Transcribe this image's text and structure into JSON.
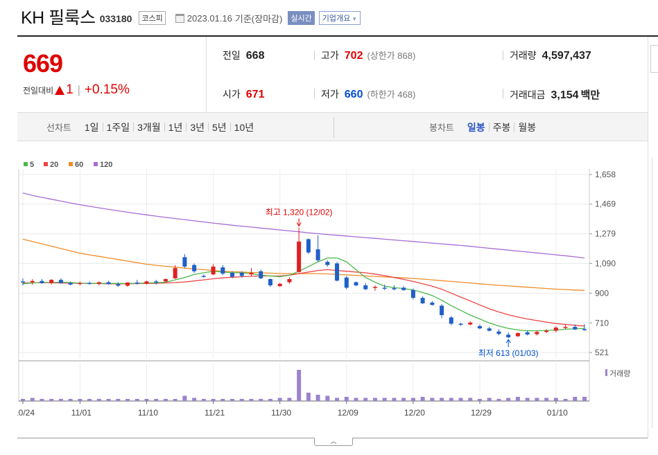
{
  "header": {
    "name": "KH 필룩스",
    "code": "033180",
    "market": "코스피",
    "date": "2023.01.16",
    "basis": "기준(장마감)",
    "realtime_label": "실시간",
    "company_label": "기업개요"
  },
  "summary": {
    "price": "669",
    "change_label": "전일대비",
    "change_value": "1",
    "change_pct": "+0.15%",
    "prev_label": "전일",
    "prev_value": "668",
    "open_label": "시가",
    "open_value": "671",
    "high_label": "고가",
    "high_value": "702",
    "upper_limit": "(상한가 868)",
    "low_label": "저가",
    "low_value": "660",
    "lower_limit": "(하한가 468)",
    "volume_label": "거래량",
    "volume_value": "4,597,437",
    "amount_label": "거래대금",
    "amount_value": "3,154",
    "amount_unit": "백만"
  },
  "periods": {
    "line_label": "선차트",
    "line_items": [
      "1일",
      "1주일",
      "3개월",
      "1년",
      "3년",
      "5년",
      "10년"
    ],
    "candle_label": "봉차트",
    "candle_items": [
      "일봉",
      "주봉",
      "월봉"
    ],
    "active_candle": "일봉"
  },
  "chart_data": {
    "type": "candlestick",
    "legend": [
      {
        "name": "5",
        "color": "#4cb84c"
      },
      {
        "name": "20",
        "color": "#ee4444"
      },
      {
        "name": "60",
        "color": "#f08c28"
      },
      {
        "name": "120",
        "color": "#a66cd6"
      }
    ],
    "y_ticks": [
      "1,658",
      "1,469",
      "1,279",
      "1,090",
      "900",
      "710",
      "521"
    ],
    "y_tick_values": [
      1658,
      1469,
      1279,
      1090,
      900,
      710,
      521
    ],
    "ylim": [
      490,
      1700
    ],
    "x_ticks": [
      "10/24",
      "11/01",
      "11/10",
      "11/21",
      "11/30",
      "12/09",
      "12/20",
      "12/29",
      "01/10"
    ],
    "x_tick_index": [
      0,
      6,
      13,
      20,
      27,
      34,
      41,
      48,
      56
    ],
    "volume_label": "거래량",
    "annotations": [
      {
        "text": "최고 1,320 (12/02)",
        "index": 29,
        "value": 1320,
        "color": "#e00000"
      },
      {
        "text": "최저 613 (01/03)",
        "index": 51,
        "value": 613,
        "color": "#0050d0"
      }
    ],
    "candles": [
      {
        "o": 975,
        "h": 995,
        "l": 950,
        "c": 970
      },
      {
        "o": 970,
        "h": 990,
        "l": 955,
        "c": 978
      },
      {
        "o": 978,
        "h": 990,
        "l": 960,
        "c": 965
      },
      {
        "o": 965,
        "h": 990,
        "l": 955,
        "c": 985
      },
      {
        "o": 985,
        "h": 995,
        "l": 960,
        "c": 965
      },
      {
        "o": 965,
        "h": 975,
        "l": 950,
        "c": 955
      },
      {
        "o": 960,
        "h": 975,
        "l": 950,
        "c": 965
      },
      {
        "o": 965,
        "h": 975,
        "l": 955,
        "c": 960
      },
      {
        "o": 960,
        "h": 975,
        "l": 950,
        "c": 970
      },
      {
        "o": 970,
        "h": 980,
        "l": 955,
        "c": 958
      },
      {
        "o": 958,
        "h": 970,
        "l": 940,
        "c": 948
      },
      {
        "o": 948,
        "h": 970,
        "l": 940,
        "c": 968
      },
      {
        "o": 968,
        "h": 985,
        "l": 955,
        "c": 962
      },
      {
        "o": 962,
        "h": 980,
        "l": 955,
        "c": 975
      },
      {
        "o": 975,
        "h": 985,
        "l": 955,
        "c": 968
      },
      {
        "o": 975,
        "h": 995,
        "l": 970,
        "c": 990
      },
      {
        "o": 995,
        "h": 1080,
        "l": 990,
        "c": 1060
      },
      {
        "o": 1130,
        "h": 1150,
        "l": 1060,
        "c": 1070
      },
      {
        "o": 1080,
        "h": 1090,
        "l": 1030,
        "c": 1040
      },
      {
        "o": 1010,
        "h": 1020,
        "l": 1000,
        "c": 1005
      },
      {
        "o": 1020,
        "h": 1085,
        "l": 1015,
        "c": 1070
      },
      {
        "o": 1065,
        "h": 1080,
        "l": 1015,
        "c": 1025
      },
      {
        "o": 1030,
        "h": 1040,
        "l": 995,
        "c": 1005
      },
      {
        "o": 1030,
        "h": 1040,
        "l": 1000,
        "c": 1010
      },
      {
        "o": 1020,
        "h": 1060,
        "l": 1010,
        "c": 1030
      },
      {
        "o": 1040,
        "h": 1050,
        "l": 990,
        "c": 995
      },
      {
        "o": 990,
        "h": 995,
        "l": 940,
        "c": 950
      },
      {
        "o": 945,
        "h": 965,
        "l": 940,
        "c": 960
      },
      {
        "o": 970,
        "h": 1000,
        "l": 960,
        "c": 990
      },
      {
        "o": 1035,
        "h": 1320,
        "l": 1030,
        "c": 1230
      },
      {
        "o": 1245,
        "h": 1250,
        "l": 1150,
        "c": 1160
      },
      {
        "o": 1180,
        "h": 1270,
        "l": 1100,
        "c": 1110
      },
      {
        "o": 1100,
        "h": 1110,
        "l": 1070,
        "c": 1080
      },
      {
        "o": 1090,
        "h": 1100,
        "l": 975,
        "c": 980
      },
      {
        "o": 1000,
        "h": 1010,
        "l": 925,
        "c": 935
      },
      {
        "o": 970,
        "h": 975,
        "l": 945,
        "c": 950
      },
      {
        "o": 950,
        "h": 965,
        "l": 920,
        "c": 925
      },
      {
        "o": 935,
        "h": 950,
        "l": 915,
        "c": 940
      },
      {
        "o": 935,
        "h": 955,
        "l": 920,
        "c": 932
      },
      {
        "o": 932,
        "h": 950,
        "l": 918,
        "c": 925
      },
      {
        "o": 935,
        "h": 945,
        "l": 915,
        "c": 920
      },
      {
        "o": 920,
        "h": 930,
        "l": 860,
        "c": 870
      },
      {
        "o": 870,
        "h": 880,
        "l": 830,
        "c": 835
      },
      {
        "o": 840,
        "h": 850,
        "l": 820,
        "c": 825
      },
      {
        "o": 820,
        "h": 830,
        "l": 740,
        "c": 760
      },
      {
        "o": 745,
        "h": 755,
        "l": 695,
        "c": 705
      },
      {
        "o": 705,
        "h": 710,
        "l": 690,
        "c": 700
      },
      {
        "o": 700,
        "h": 720,
        "l": 695,
        "c": 712
      },
      {
        "o": 690,
        "h": 700,
        "l": 670,
        "c": 675
      },
      {
        "o": 675,
        "h": 685,
        "l": 655,
        "c": 660
      },
      {
        "o": 655,
        "h": 670,
        "l": 630,
        "c": 640
      },
      {
        "o": 635,
        "h": 650,
        "l": 613,
        "c": 618
      },
      {
        "o": 625,
        "h": 650,
        "l": 620,
        "c": 645
      },
      {
        "o": 650,
        "h": 660,
        "l": 630,
        "c": 636
      },
      {
        "o": 638,
        "h": 660,
        "l": 630,
        "c": 652
      },
      {
        "o": 652,
        "h": 670,
        "l": 645,
        "c": 660
      },
      {
        "o": 660,
        "h": 690,
        "l": 650,
        "c": 680
      },
      {
        "o": 680,
        "h": 700,
        "l": 670,
        "c": 685
      },
      {
        "o": 685,
        "h": 700,
        "l": 665,
        "c": 668
      },
      {
        "o": 671,
        "h": 702,
        "l": 660,
        "c": 669
      }
    ],
    "volumes": [
      2,
      3,
      2,
      2,
      2,
      2,
      2,
      2,
      2,
      2,
      2,
      2,
      2,
      2,
      2,
      2,
      2,
      5,
      3,
      2,
      2,
      2,
      2,
      2,
      2,
      2,
      2,
      3,
      3,
      30,
      8,
      6,
      5,
      3,
      4,
      3,
      3,
      3,
      3,
      3,
      3,
      3,
      4,
      3,
      3,
      3,
      3,
      3,
      2,
      3,
      2,
      3,
      4,
      3,
      3,
      3,
      3,
      2,
      4,
      4
    ],
    "ma5": [
      960,
      965,
      968,
      968,
      970,
      968,
      964,
      963,
      962,
      963,
      962,
      962,
      963,
      965,
      966,
      970,
      985,
      1000,
      1020,
      1030,
      1040,
      1035,
      1030,
      1030,
      1025,
      1015,
      1010,
      1005,
      1015,
      1040,
      1070,
      1100,
      1125,
      1125,
      1100,
      1050,
      1000,
      970,
      945,
      935,
      930,
      920,
      905,
      885,
      855,
      820,
      790,
      760,
      735,
      710,
      690,
      675,
      665,
      660,
      660,
      662,
      665,
      670,
      672,
      675
    ],
    "ma20": [
      965,
      966,
      966,
      966,
      965,
      964,
      963,
      962,
      961,
      960,
      960,
      960,
      961,
      962,
      963,
      965,
      968,
      972,
      978,
      985,
      992,
      998,
      1002,
      1005,
      1008,
      1010,
      1010,
      1010,
      1015,
      1025,
      1035,
      1045,
      1050,
      1045,
      1040,
      1035,
      1030,
      1022,
      1012,
      1000,
      988,
      975,
      960,
      945,
      925,
      900,
      875,
      850,
      825,
      800,
      780,
      762,
      748,
      735,
      725,
      715,
      706,
      700,
      695,
      690
    ],
    "ma60": [
      1245,
      1230,
      1215,
      1200,
      1185,
      1170,
      1155,
      1145,
      1135,
      1125,
      1115,
      1105,
      1095,
      1085,
      1078,
      1072,
      1066,
      1060,
      1055,
      1050,
      1045,
      1040,
      1037,
      1035,
      1032,
      1030,
      1028,
      1026,
      1025,
      1025,
      1025,
      1025,
      1023,
      1020,
      1017,
      1014,
      1010,
      1007,
      1004,
      1001,
      998,
      994,
      990,
      985,
      980,
      975,
      970,
      965,
      960,
      955,
      950,
      946,
      942,
      938,
      934,
      930,
      926,
      923,
      920,
      918
    ],
    "ma120": [
      1540,
      1525,
      1512,
      1500,
      1488,
      1476,
      1465,
      1455,
      1445,
      1435,
      1426,
      1417,
      1408,
      1400,
      1392,
      1384,
      1377,
      1370,
      1362,
      1355,
      1348,
      1341,
      1334,
      1328,
      1322,
      1316,
      1310,
      1304,
      1298,
      1292,
      1286,
      1280,
      1275,
      1270,
      1265,
      1260,
      1255,
      1250,
      1245,
      1240,
      1235,
      1230,
      1225,
      1220,
      1215,
      1210,
      1205,
      1199,
      1193,
      1187,
      1181,
      1175,
      1169,
      1163,
      1157,
      1151,
      1145,
      1139,
      1132,
      1125
    ]
  }
}
